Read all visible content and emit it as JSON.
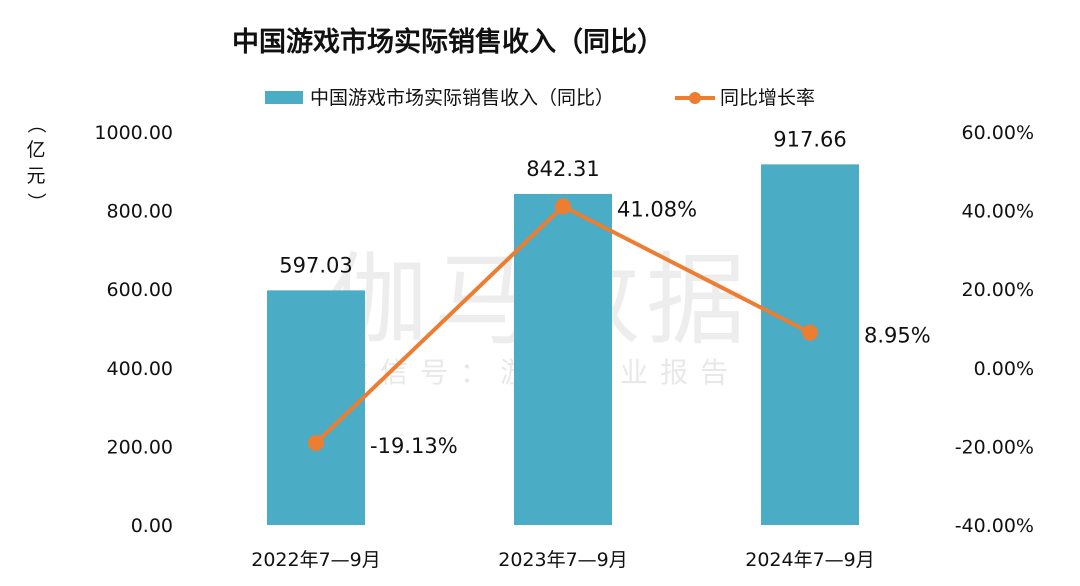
{
  "chart_data": {
    "type": "bar",
    "title": "中国游戏市场实际销售收入（同比）",
    "categories": [
      "2022年7—9月",
      "2023年7—9月",
      "2024年7—9月"
    ],
    "series": [
      {
        "name": "中国游戏市场实际销售收入（同比）",
        "kind": "bar",
        "axis": "left",
        "values": [
          597.03,
          842.31,
          917.66
        ],
        "labels": [
          "597.03",
          "842.31",
          "917.66"
        ],
        "color": "#4bacc6"
      },
      {
        "name": "同比增长率",
        "kind": "line",
        "axis": "right",
        "values": [
          -19.13,
          41.08,
          8.95
        ],
        "labels": [
          "-19.13%",
          "41.08%",
          "8.95%"
        ],
        "color": "#ed7d31"
      }
    ],
    "y_left": {
      "unit_label": "（亿元）",
      "range": [
        0,
        1000
      ],
      "ticks": [
        0,
        200,
        400,
        600,
        800,
        1000
      ],
      "tick_labels": [
        "0.00",
        "200.00",
        "400.00",
        "600.00",
        "800.00",
        "1000.00"
      ]
    },
    "y_right": {
      "range": [
        -40,
        60
      ],
      "ticks": [
        -40,
        -20,
        0,
        20,
        40,
        60
      ],
      "tick_labels": [
        "-40.00%",
        "-20.00%",
        "0.00%",
        "20.00%",
        "40.00%",
        "60.00%"
      ]
    },
    "grid": false,
    "legend_position": "top"
  },
  "watermark": {
    "main": "伽马数据",
    "sub": "微信号：游戏产业报告"
  }
}
